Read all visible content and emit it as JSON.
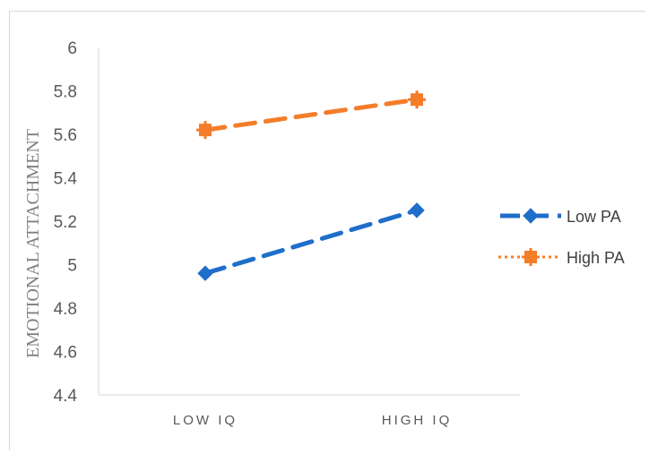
{
  "chart_data": {
    "type": "line",
    "categories": [
      "LOW IQ",
      "HIGH IQ"
    ],
    "series": [
      {
        "name": "Low PA",
        "values": [
          4.96,
          5.25
        ],
        "color": "#1f6ec9",
        "line_style": "dashed",
        "marker": "diamond"
      },
      {
        "name": "High PA",
        "values": [
          5.62,
          5.76
        ],
        "color": "#f47d2a",
        "line_style": "dashed",
        "marker": "square"
      }
    ],
    "title": "",
    "xlabel": "",
    "ylabel": "EMOTIONAL ATTACHMENT",
    "ylim": [
      4.4,
      6
    ],
    "yticks": [
      "4.4",
      "4.6",
      "4.8",
      "5",
      "5.2",
      "5.4",
      "5.6",
      "5.8",
      "6"
    ],
    "grid": false,
    "legend_position": "right"
  }
}
